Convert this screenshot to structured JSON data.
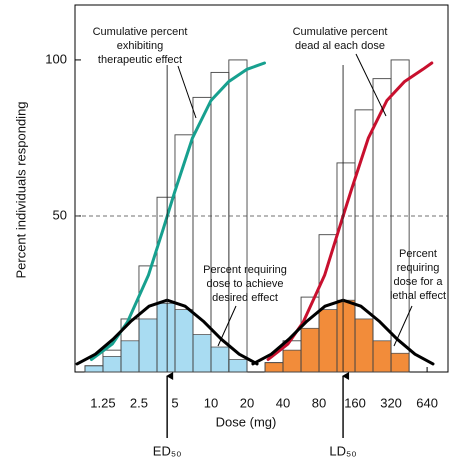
{
  "chart_data": {
    "type": "dose-response",
    "y_label": "Percent individuals responding",
    "x_label": "Dose (mg)",
    "xscale": "log",
    "xlim": [
      0.73,
      957
    ],
    "ylim": [
      0,
      117.6
    ],
    "xticks": [
      1.25,
      2.5,
      5,
      10,
      20,
      40,
      80,
      160,
      320,
      640
    ],
    "yticks": [
      50,
      100
    ],
    "dashed_line_y": 50,
    "histograms": [
      {
        "color": "#a9dcf2",
        "bins": [
          0.884,
          1.25,
          1.77,
          2.5,
          3.54,
          5,
          7.07,
          10,
          14.1,
          20
        ],
        "counts": [
          2,
          5,
          10,
          17,
          22,
          20,
          12,
          8,
          4
        ]
      },
      {
        "color": "#f28c3a",
        "bins": [
          28.3,
          40,
          56.6,
          80,
          113,
          160,
          226,
          320,
          453
        ],
        "counts": [
          3,
          7,
          14,
          20,
          23,
          17,
          10,
          6
        ]
      }
    ],
    "steps": [
      {
        "bins": [
          0.884,
          1.25,
          1.77,
          2.5,
          3.54,
          5,
          7.07,
          10,
          14.1,
          20
        ],
        "values": [
          2,
          7,
          17,
          34,
          56,
          76,
          88,
          96,
          100
        ]
      },
      {
        "bins": [
          28.3,
          40,
          56.6,
          80,
          113,
          160,
          226,
          320,
          453
        ],
        "values": [
          3,
          10,
          24,
          44,
          67,
          84,
          94,
          100
        ]
      }
    ],
    "curves": [
      {
        "color": "#17a08f",
        "x": [
          1,
          1.5,
          2,
          3,
          4,
          5,
          7,
          10,
          14,
          20,
          28
        ],
        "y": [
          4,
          9,
          16,
          31,
          46,
          58,
          75,
          87,
          93,
          97,
          99
        ]
      },
      {
        "color": "#c8102e",
        "x": [
          30,
          44,
          59,
          89,
          118,
          148,
          207,
          295,
          413,
          590,
          700
        ],
        "y": [
          4,
          9,
          16,
          31,
          46,
          58,
          75,
          87,
          93,
          97,
          99
        ]
      },
      {
        "color": "#000000",
        "x": [
          0.76,
          1.08,
          1.52,
          2.15,
          3.04,
          4.3,
          6.08,
          8.6,
          12.2,
          17.2,
          24.3
        ],
        "y": [
          2.6,
          5.7,
          10.5,
          16.3,
          21.1,
          23,
          21.1,
          16.3,
          10.5,
          5.7,
          2.6
        ]
      },
      {
        "color": "#000000",
        "x": [
          22.4,
          31.9,
          44.8,
          63.4,
          89.7,
          127,
          179,
          254,
          360,
          507,
          717
        ],
        "y": [
          2.6,
          5.7,
          10.5,
          16.3,
          21.1,
          23,
          21.1,
          16.3,
          10.5,
          5.7,
          2.6
        ]
      }
    ],
    "annotations": [
      {
        "lines": [
          "Cumulative percent",
          "exhibiting",
          "therapeutic effect"
        ]
      },
      {
        "lines": [
          "Cumulative percent",
          "dead al each dose"
        ]
      },
      {
        "lines": [
          "Percent requiring",
          "dose to achieve",
          "desired effect"
        ]
      },
      {
        "lines": [
          "Percent",
          "requiring",
          "dose for a",
          "lethal effect"
        ]
      }
    ],
    "markers": [
      {
        "label": "ED₅₀",
        "x": 4.3
      },
      {
        "label": "LD₅₀",
        "x": 127
      }
    ]
  }
}
